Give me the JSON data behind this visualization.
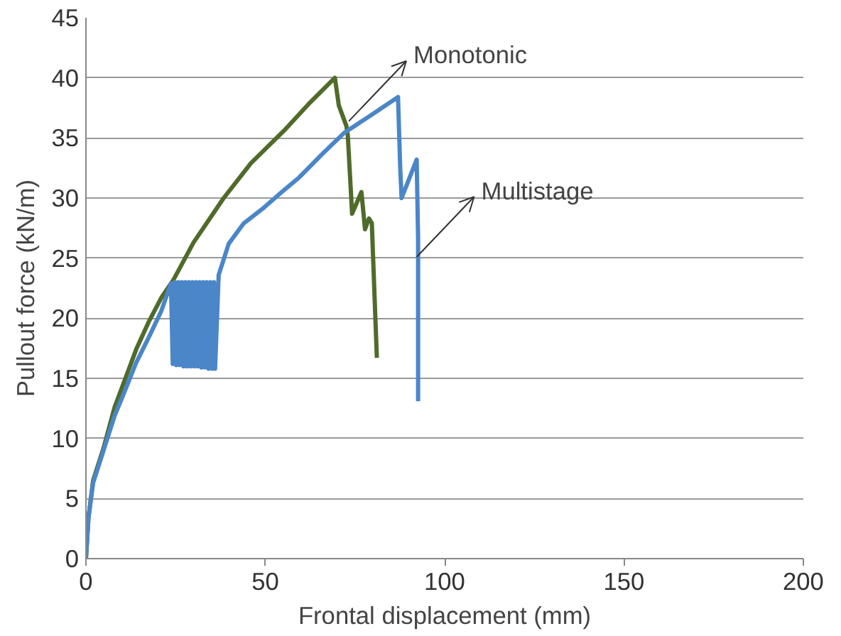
{
  "chart_data": {
    "type": "line",
    "xlabel": "Frontal displacement (mm)",
    "ylabel": "Pullout force (kN/m)",
    "xlim": [
      0,
      200
    ],
    "ylim": [
      0,
      45
    ],
    "xticks": [
      0,
      50,
      100,
      150,
      200
    ],
    "yticks": [
      0,
      5,
      10,
      15,
      20,
      25,
      30,
      35,
      40,
      45
    ],
    "grid": "y",
    "marker": "none",
    "line_style": "solid",
    "series": [
      {
        "name": null,
        "color": "#4f6b2a",
        "x": [
          0,
          0.7,
          2,
          4.9,
          8,
          10.5,
          14,
          17.5,
          21,
          24.4,
          30,
          38.4,
          46,
          55.2,
          62,
          69.4,
          70.5,
          72.6,
          73,
          74.2,
          76.8,
          77.8,
          78.9,
          79.7,
          81.1
        ],
        "values": [
          0,
          3.4,
          6.5,
          9.2,
          12.6,
          14.6,
          17.4,
          19.7,
          21.7,
          23.2,
          26.3,
          30,
          32.9,
          35.6,
          37.8,
          40,
          37.7,
          36,
          35.2,
          28.7,
          30.5,
          27.4,
          28.3,
          27.9,
          16.7
        ]
      },
      {
        "name": null,
        "color": "#4a86c8",
        "x": [
          0,
          0.7,
          2,
          4.9,
          8,
          10.5,
          14,
          17.5,
          21,
          23.7,
          24.2,
          24.7,
          25.2,
          25.7,
          26.2,
          26.7,
          27.2,
          27.7,
          28.2,
          28.7,
          29.2,
          29.7,
          30.2,
          30.7,
          31.2,
          31.7,
          32.2,
          32.7,
          33.2,
          33.7,
          34.2,
          34.7,
          35.2,
          35.7,
          36,
          37,
          39.8,
          44,
          49.6,
          55,
          59.4,
          66,
          71.9,
          80,
          87,
          87.6,
          88,
          92.2,
          92.6,
          92.6
        ],
        "values": [
          0,
          3.4,
          6.3,
          9,
          11.9,
          13.7,
          16.3,
          18.4,
          20.6,
          22.9,
          16.2,
          23,
          16.1,
          23,
          16.1,
          23,
          16,
          23,
          16,
          23,
          16,
          23,
          16,
          23,
          16,
          23,
          15.9,
          23,
          15.9,
          23,
          15.8,
          23,
          15.8,
          23,
          15.8,
          23.6,
          26.2,
          27.9,
          29.2,
          30.6,
          31.7,
          33.7,
          35.4,
          37,
          38.4,
          32.6,
          30,
          33.2,
          26.6,
          13.1
        ]
      }
    ],
    "annotations": [
      {
        "text": "Monotonic",
        "x": 73.3,
        "y": 36.4
      },
      {
        "text": "Multistage",
        "x": 92.2,
        "y": 25.1
      }
    ]
  }
}
